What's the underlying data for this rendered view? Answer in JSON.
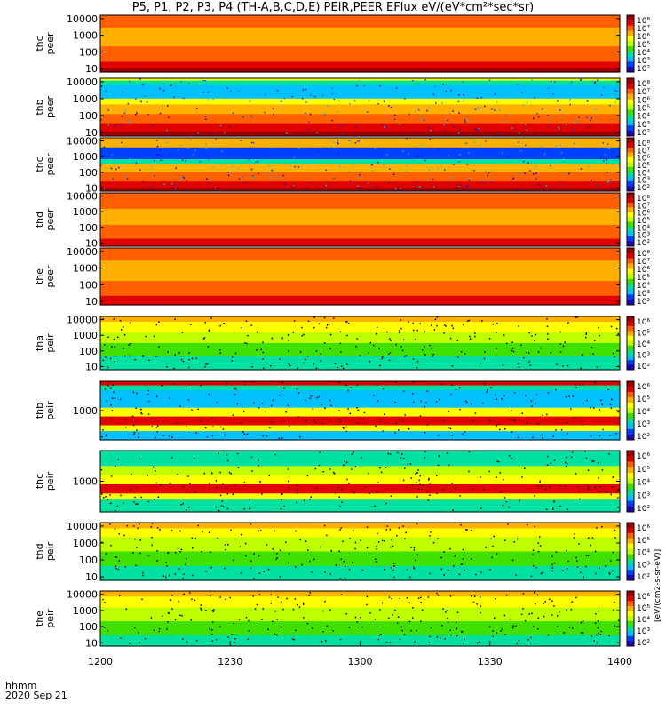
{
  "title": "P5, P1, P2, P3, P4 (TH-A,B,C,D,E) PEIR,PEER EFlux eV/(eV*cm²*sec*sr)",
  "footer": {
    "time_label": "hhmm",
    "date_label": "2020 Sep 21"
  },
  "colorbar_unit": "[eV/(cm2-s-sr-eV)]",
  "colors": [
    "#2000b0",
    "#0040ff",
    "#00c0ff",
    "#00e0a0",
    "#40e000",
    "#c0ff00",
    "#ffff00",
    "#ffb000",
    "#ff6000",
    "#e00000",
    "#a00000"
  ],
  "chart_data": {
    "type": "heatmap",
    "x_axis": {
      "ticks": [
        "1200",
        "1230",
        "1300",
        "1330",
        "1400"
      ],
      "range": [
        "1200",
        "1400"
      ]
    },
    "panels": [
      {
        "label": [
          "thc",
          "peer"
        ],
        "yticks": [
          "10000",
          "1000",
          "100",
          "10"
        ],
        "cbar": [
          "10⁸",
          "10⁷",
          "10⁶",
          "10⁵",
          "10⁴",
          "10³",
          "10²"
        ]
      },
      {
        "label": [
          "thb",
          "peer"
        ],
        "yticks": [
          "10000",
          "1000",
          "100",
          "10"
        ],
        "cbar": [
          "10⁸",
          "10⁷",
          "10⁶",
          "10⁵",
          "10⁴",
          "10³",
          "10²"
        ]
      },
      {
        "label": [
          "thc",
          "peer"
        ],
        "yticks": [
          "10000",
          "1000",
          "100",
          "10"
        ],
        "cbar": [
          "10⁸",
          "10⁷",
          "10⁶",
          "10⁵",
          "10⁴",
          "10³",
          "10²"
        ]
      },
      {
        "label": [
          "thd",
          "peer"
        ],
        "yticks": [
          "10000",
          "1000",
          "100",
          "10"
        ],
        "cbar": [
          "10⁸",
          "10⁷",
          "10⁶",
          "10⁵",
          "10⁴",
          "10³",
          "10²"
        ]
      },
      {
        "label": [
          "the",
          "peer"
        ],
        "yticks": [
          "10000",
          "1000",
          "100",
          "10"
        ],
        "cbar": [
          "10⁸",
          "10⁷",
          "10⁶",
          "10⁵",
          "10⁴",
          "10³",
          "10²"
        ]
      },
      {
        "label": [
          "tha",
          "peir"
        ],
        "yticks": [
          "10000",
          "1000",
          "100",
          "10"
        ],
        "cbar": [
          "10⁶",
          "10⁵",
          "10⁴",
          "10³",
          "10²"
        ]
      },
      {
        "label": [
          "thb",
          "peir"
        ],
        "yticks": [
          "1000"
        ],
        "cbar": [
          "10⁶",
          "10⁵",
          "10⁴",
          "10³",
          "10²"
        ]
      },
      {
        "label": [
          "thc",
          "peir"
        ],
        "yticks": [
          "1000"
        ],
        "cbar": [
          "10⁶",
          "10⁵",
          "10⁴",
          "10³",
          "10²"
        ]
      },
      {
        "label": [
          "thd",
          "peir"
        ],
        "yticks": [
          "10000",
          "1000",
          "100",
          "10"
        ],
        "cbar": [
          "10⁶",
          "10⁵",
          "10⁴",
          "10³",
          "10²"
        ]
      },
      {
        "label": [
          "the",
          "peir"
        ],
        "yticks": [
          "10000",
          "1000",
          "100",
          "10"
        ],
        "cbar": [
          "10⁶",
          "10⁵",
          "10⁴",
          "10³",
          "10²"
        ]
      }
    ]
  }
}
